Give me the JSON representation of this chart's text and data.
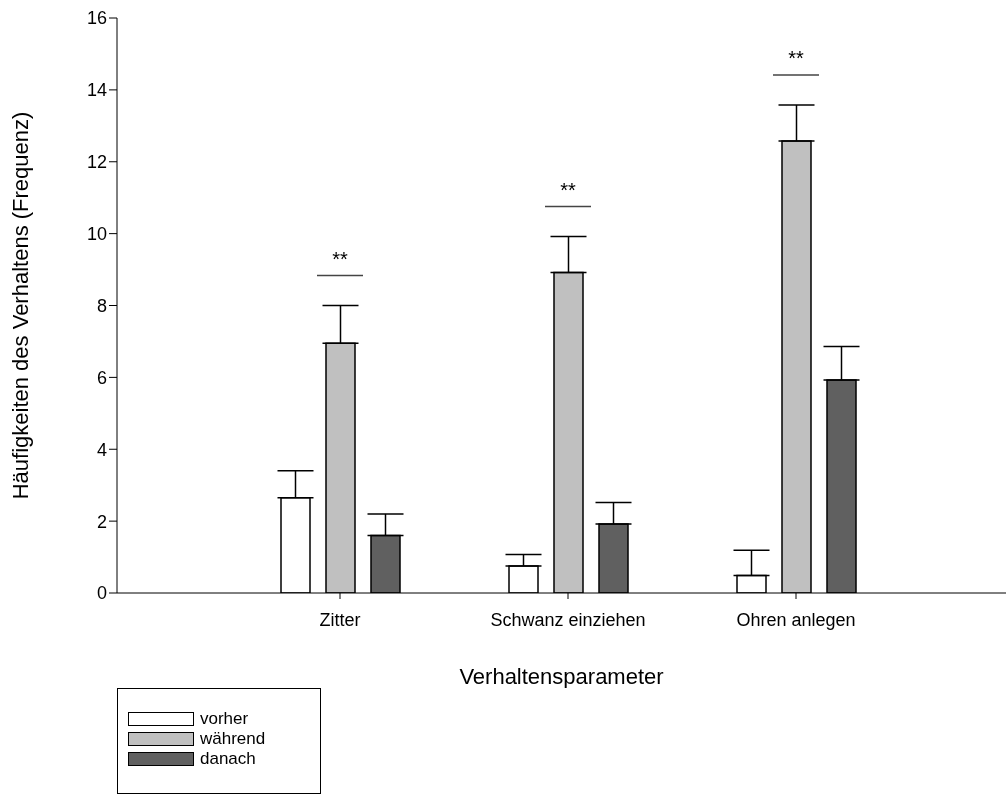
{
  "chart_data": {
    "type": "bar",
    "xlabel": "Verhaltensparameter",
    "ylabel": "Häufigkeiten des Verhaltens (Frequenz)",
    "categories": [
      "Zitter",
      "Schwanz einziehen",
      "Ohren anlegen"
    ],
    "series": [
      {
        "name": "vorher",
        "color": "#ffffff",
        "values": [
          2.65,
          0.75,
          0.49
        ],
        "errors": [
          0.75,
          0.32,
          0.7
        ]
      },
      {
        "name": "während",
        "color": "#c0c0c0",
        "values": [
          6.95,
          8.92,
          12.58
        ],
        "errors": [
          1.05,
          1.0,
          1.0
        ]
      },
      {
        "name": "danach",
        "color": "#606060",
        "values": [
          1.6,
          1.92,
          5.93
        ],
        "errors": [
          0.6,
          0.6,
          0.93
        ]
      }
    ],
    "ylim": [
      0,
      16
    ],
    "yticks": [
      0,
      2,
      4,
      6,
      8,
      10,
      12,
      14,
      16
    ],
    "grid": false,
    "legend": "bottom left",
    "annotations": [
      "**",
      "**",
      "**"
    ]
  }
}
